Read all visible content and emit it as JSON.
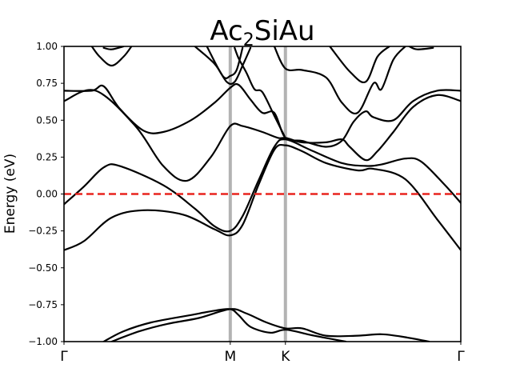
{
  "chart_data": {
    "type": "line",
    "title": {
      "base": "Ac",
      "subscript": "2",
      "rest": "SiAu"
    },
    "xlabel": "",
    "ylabel": "Energy (eV)",
    "ylim": [
      -1.0,
      1.0
    ],
    "yticks": [
      "-1.00",
      "-0.75",
      "-0.50",
      "-0.25",
      "0.00",
      "0.25",
      "0.50",
      "0.75",
      "1.00"
    ],
    "ytick_values": [
      -1.0,
      -0.75,
      -0.5,
      -0.25,
      0.0,
      0.25,
      0.5,
      0.75,
      1.0
    ],
    "x_range": [
      0,
      1
    ],
    "kpoints": [
      {
        "label": "Γ",
        "x": 0.0
      },
      {
        "label": "M",
        "x": 0.419
      },
      {
        "label": "K",
        "x": 0.558
      },
      {
        "label": "Γ",
        "x": 1.0
      }
    ],
    "fermi_level": 0.0,
    "colors": {
      "bands": "#000000",
      "fermi": "#e8231f",
      "kpath_lines": "#b3b3b3"
    },
    "series": [
      {
        "values": [
          [
            0,
            -0.38
          ],
          [
            0.05,
            -0.32
          ],
          [
            0.12,
            -0.16
          ],
          [
            0.2,
            -0.11
          ],
          [
            0.3,
            -0.14
          ],
          [
            0.38,
            -0.24
          ],
          [
            0.419,
            -0.28
          ],
          [
            0.45,
            -0.21
          ],
          [
            0.49,
            0.06
          ],
          [
            0.53,
            0.3
          ],
          [
            0.558,
            0.33
          ],
          [
            0.6,
            0.29
          ],
          [
            0.66,
            0.21
          ],
          [
            0.74,
            0.16
          ],
          [
            0.78,
            0.17
          ],
          [
            0.86,
            0.1
          ],
          [
            0.94,
            -0.17
          ],
          [
            1.0,
            -0.38
          ]
        ]
      },
      {
        "values": [
          [
            0,
            -0.07
          ],
          [
            0.05,
            0.05
          ],
          [
            0.1,
            0.18
          ],
          [
            0.14,
            0.19
          ],
          [
            0.25,
            0.06
          ],
          [
            0.33,
            -0.1
          ],
          [
            0.38,
            -0.22
          ],
          [
            0.419,
            -0.25
          ],
          [
            0.45,
            -0.15
          ],
          [
            0.49,
            0.09
          ],
          [
            0.53,
            0.32
          ],
          [
            0.558,
            0.37
          ],
          [
            0.62,
            0.3
          ],
          [
            0.7,
            0.21
          ],
          [
            0.76,
            0.19
          ],
          [
            0.8,
            0.2
          ],
          [
            0.86,
            0.24
          ],
          [
            0.9,
            0.22
          ],
          [
            0.96,
            0.06
          ],
          [
            1.0,
            -0.06
          ]
        ]
      },
      {
        "values": [
          [
            0,
            0.63
          ],
          [
            0.08,
            0.7
          ],
          [
            0.18,
            0.46
          ],
          [
            0.25,
            0.19
          ],
          [
            0.31,
            0.09
          ],
          [
            0.37,
            0.25
          ],
          [
            0.419,
            0.46
          ],
          [
            0.45,
            0.46
          ],
          [
            0.5,
            0.42
          ],
          [
            0.54,
            0.38
          ],
          [
            0.56,
            0.38
          ],
          [
            0.6,
            0.35
          ],
          [
            0.66,
            0.35
          ],
          [
            0.7,
            0.37
          ],
          [
            0.72,
            0.32
          ],
          [
            0.76,
            0.23
          ],
          [
            0.79,
            0.29
          ],
          [
            0.83,
            0.42
          ],
          [
            0.88,
            0.59
          ],
          [
            0.94,
            0.67
          ],
          [
            1.0,
            0.63
          ]
        ]
      },
      {
        "values": [
          [
            0,
            0.7
          ],
          [
            0.07,
            0.7
          ],
          [
            0.1,
            0.73
          ],
          [
            0.14,
            0.58
          ],
          [
            0.2,
            0.43
          ],
          [
            0.25,
            0.42
          ],
          [
            0.32,
            0.5
          ],
          [
            0.38,
            0.62
          ],
          [
            0.419,
            0.72
          ],
          [
            0.44,
            0.74
          ],
          [
            0.47,
            0.64
          ],
          [
            0.5,
            0.55
          ],
          [
            0.53,
            0.55
          ],
          [
            0.558,
            0.38
          ],
          [
            0.6,
            0.36
          ],
          [
            0.66,
            0.32
          ],
          [
            0.7,
            0.36
          ],
          [
            0.73,
            0.49
          ],
          [
            0.76,
            0.56
          ],
          [
            0.78,
            0.52
          ],
          [
            0.83,
            0.5
          ],
          [
            0.88,
            0.63
          ],
          [
            0.94,
            0.7
          ],
          [
            1.0,
            0.7
          ]
        ]
      },
      {
        "values": [
          [
            0.43,
            0.99
          ],
          [
            0.44,
            0.92
          ],
          [
            0.46,
            0.82
          ],
          [
            0.48,
            0.71
          ],
          [
            0.5,
            0.69
          ],
          [
            0.53,
            0.53
          ],
          [
            0.556,
            0.39
          ]
        ]
      },
      {
        "values": [
          [
            0.36,
            1.0
          ],
          [
            0.4,
            0.8
          ],
          [
            0.419,
            0.8
          ],
          [
            0.435,
            0.84
          ],
          [
            0.45,
            0.99
          ]
        ]
      },
      {
        "values": [
          [
            0.33,
            1.0
          ],
          [
            0.38,
            0.88
          ],
          [
            0.41,
            0.76
          ],
          [
            0.43,
            0.76
          ],
          [
            0.45,
            0.87
          ],
          [
            0.47,
            0.99
          ]
        ]
      },
      {
        "values": [
          [
            0.53,
            1.0
          ],
          [
            0.558,
            0.85
          ],
          [
            0.6,
            0.84
          ],
          [
            0.66,
            0.79
          ],
          [
            0.7,
            0.62
          ],
          [
            0.74,
            0.55
          ],
          [
            0.78,
            0.75
          ],
          [
            0.8,
            0.71
          ],
          [
            0.83,
            0.91
          ],
          [
            0.86,
            1.0
          ]
        ]
      },
      {
        "values": [
          [
            0.67,
            1.0
          ],
          [
            0.72,
            0.83
          ],
          [
            0.76,
            0.76
          ],
          [
            0.79,
            0.93
          ],
          [
            0.82,
            1.0
          ]
        ]
      },
      {
        "values": [
          [
            0.07,
            1.0
          ],
          [
            0.09,
            0.93
          ],
          [
            0.12,
            0.87
          ],
          [
            0.15,
            0.93
          ],
          [
            0.17,
            1.0
          ]
        ]
      },
      {
        "values": [
          [
            0.1,
            0.99
          ],
          [
            0.12,
            0.98
          ],
          [
            0.15,
            1.0
          ]
        ]
      },
      {
        "values": [
          [
            0.87,
            1.0
          ],
          [
            0.89,
            0.98
          ],
          [
            0.93,
            0.99
          ]
        ]
      },
      {
        "values": [
          [
            0.1,
            -1.0
          ],
          [
            0.15,
            -0.93
          ],
          [
            0.22,
            -0.87
          ],
          [
            0.32,
            -0.82
          ],
          [
            0.38,
            -0.79
          ],
          [
            0.419,
            -0.78
          ],
          [
            0.44,
            -0.82
          ],
          [
            0.47,
            -0.9
          ],
          [
            0.52,
            -0.94
          ],
          [
            0.56,
            -0.92
          ],
          [
            0.63,
            -0.96
          ],
          [
            0.71,
            -1.0
          ]
        ]
      },
      {
        "values": [
          [
            0.12,
            -1.0
          ],
          [
            0.19,
            -0.93
          ],
          [
            0.26,
            -0.88
          ],
          [
            0.34,
            -0.84
          ],
          [
            0.419,
            -0.78
          ],
          [
            0.46,
            -0.81
          ],
          [
            0.51,
            -0.87
          ],
          [
            0.558,
            -0.91
          ],
          [
            0.6,
            -0.91
          ],
          [
            0.66,
            -0.96
          ],
          [
            0.74,
            -0.96
          ],
          [
            0.8,
            -0.95
          ],
          [
            0.86,
            -0.97
          ],
          [
            0.92,
            -1.0
          ]
        ]
      }
    ]
  }
}
